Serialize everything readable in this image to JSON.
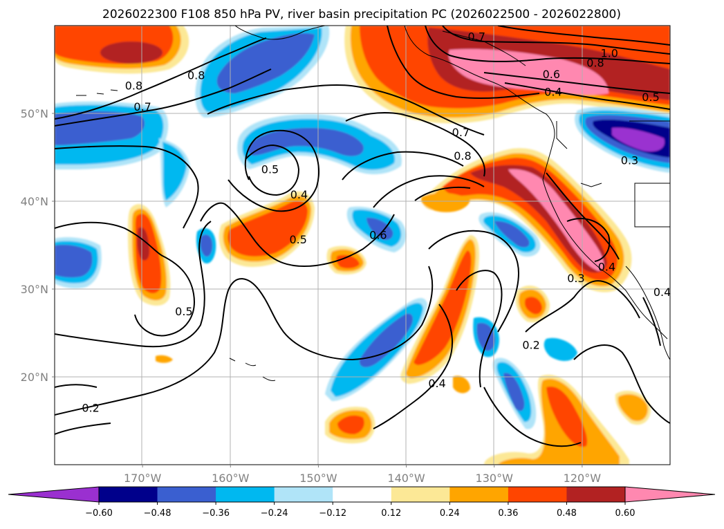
{
  "title": "2026022300 F108 850 hPa PV, river basin precipitation PC (2026022500 - 2026022800)",
  "map": {
    "lon_range": [
      -180,
      -110
    ],
    "lat_range": [
      10,
      60
    ],
    "lon_ticks": [
      {
        "lon": -170,
        "label": "170°W"
      },
      {
        "lon": -160,
        "label": "160°W"
      },
      {
        "lon": -150,
        "label": "150°W"
      },
      {
        "lon": -140,
        "label": "140°W"
      },
      {
        "lon": -130,
        "label": "130°W"
      },
      {
        "lon": -120,
        "label": "120°W"
      }
    ],
    "lat_ticks": [
      {
        "lat": 50,
        "label": "50°N"
      },
      {
        "lat": 40,
        "label": "40°N"
      },
      {
        "lat": 30,
        "label": "30°N"
      },
      {
        "lat": 20,
        "label": "20°N"
      }
    ]
  },
  "colors": {
    "neg_extend": "#9a30d0",
    "n060": "#00008b",
    "n048": "#3a5fd0",
    "n036": "#00b8f0",
    "n024": "#b0e4f8",
    "neutral": "#ffffff",
    "p012": "#fce896",
    "p024": "#ffa500",
    "p036": "#ff4500",
    "p048": "#b22222",
    "p060": "#ff88b0"
  },
  "colorbar": {
    "levels": [
      -0.6,
      -0.48,
      -0.36,
      -0.24,
      -0.12,
      0.12,
      0.24,
      0.36,
      0.48,
      0.6
    ],
    "labels": [
      "−0.60",
      "−0.48",
      "−0.36",
      "−0.24",
      "−0.12",
      "0.12",
      "0.24",
      "0.36",
      "0.48",
      "0.60"
    ],
    "bin_colors": [
      "#00008b",
      "#3a5fd0",
      "#00b8f0",
      "#b0e4f8",
      "#ffffff",
      "#fce896",
      "#ffa500",
      "#ff4500",
      "#b22222"
    ],
    "under_color": "#9a30d0",
    "over_color": "#ff88b0"
  },
  "contour_labels": [
    {
      "text": "0.8",
      "lon": -163.9,
      "lat": 54.3
    },
    {
      "text": "0.8",
      "lon": -171,
      "lat": 53.1
    },
    {
      "text": "0.7",
      "lon": -170,
      "lat": 50.7
    },
    {
      "text": "1.0",
      "lon": -116.9,
      "lat": 56.8
    },
    {
      "text": "0.8",
      "lon": -118.5,
      "lat": 55.7
    },
    {
      "text": "0.7",
      "lon": -132,
      "lat": 58.7
    },
    {
      "text": "0.6",
      "lon": -123.5,
      "lat": 54.4
    },
    {
      "text": "0.4",
      "lon": -123.3,
      "lat": 52.4
    },
    {
      "text": "0.5",
      "lon": -112.2,
      "lat": 51.8
    },
    {
      "text": "0.7",
      "lon": -133.8,
      "lat": 47.8
    },
    {
      "text": "0.8",
      "lon": -133.6,
      "lat": 45.1
    },
    {
      "text": "0.3",
      "lon": -114.6,
      "lat": 44.6
    },
    {
      "text": "0.5",
      "lon": -155.5,
      "lat": 43.6
    },
    {
      "text": "0.4",
      "lon": -152.2,
      "lat": 40.7
    },
    {
      "text": "0.5",
      "lon": -152.3,
      "lat": 35.6
    },
    {
      "text": "0.6",
      "lon": -143.2,
      "lat": 36.1
    },
    {
      "text": "0.3",
      "lon": -120.7,
      "lat": 31.2
    },
    {
      "text": "0.4",
      "lon": -117.2,
      "lat": 32.5
    },
    {
      "text": "0.4",
      "lon": -110.9,
      "lat": 29.6
    },
    {
      "text": "0.5",
      "lon": -165.3,
      "lat": 27.4
    },
    {
      "text": "0.2",
      "lon": -125.8,
      "lat": 23.6
    },
    {
      "text": "0.4",
      "lon": -136.5,
      "lat": 19.2
    },
    {
      "text": "0.2",
      "lon": -175.9,
      "lat": 16.4
    }
  ]
}
